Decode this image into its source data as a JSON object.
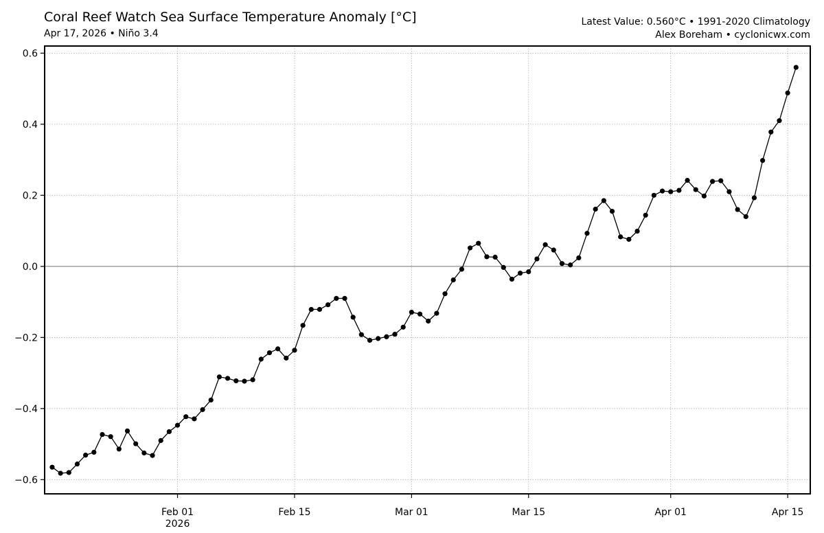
{
  "header": {
    "title": "Coral Reef Watch Sea Surface Temperature Anomaly [°C]",
    "subtitle": "Apr 17, 2026 • Niño 3.4",
    "latest_line": "Latest Value: 0.560°C • 1991-2020 Climatology",
    "credit_line": "Alex Boreham • cyclonicwx.com"
  },
  "colors": {
    "line": "#000000",
    "marker": "#000000",
    "grid": "#b0b0b0",
    "zero_line": "#808080",
    "frame": "#000000"
  },
  "chart_data": {
    "type": "line",
    "title": "Coral Reef Watch Sea Surface Temperature Anomaly [°C]",
    "xlabel": "",
    "ylabel": "",
    "start_date": "2026-01-17",
    "end_date": "2026-04-17",
    "xlim_days": [
      -0.9,
      90.7
    ],
    "ylim": [
      -0.64,
      0.62
    ],
    "y_ticks": [
      0.6,
      0.4,
      0.2,
      0.0,
      -0.2,
      -0.4,
      -0.6
    ],
    "y_tick_labels": [
      "0.6",
      "0.4",
      "0.2",
      "0.0",
      "−0.2",
      "−0.4",
      "−0.6"
    ],
    "x_ticks_days": [
      15,
      29,
      43,
      57,
      74,
      88
    ],
    "x_tick_labels": [
      "Feb 01",
      "Feb 15",
      "Mar 01",
      "Mar 15",
      "Apr 01",
      "Apr 15"
    ],
    "x_tick_year_label": "2026",
    "grid": true,
    "zero_line": true,
    "series": [
      {
        "name": "Niño 3.4 SST Anomaly",
        "values": [
          -0.565,
          -0.582,
          -0.58,
          -0.556,
          -0.531,
          -0.523,
          -0.473,
          -0.479,
          -0.514,
          -0.463,
          -0.499,
          -0.525,
          -0.532,
          -0.49,
          -0.465,
          -0.447,
          -0.423,
          -0.429,
          -0.403,
          -0.376,
          -0.311,
          -0.315,
          -0.322,
          -0.323,
          -0.319,
          -0.261,
          -0.243,
          -0.232,
          -0.258,
          -0.236,
          -0.166,
          -0.121,
          -0.121,
          -0.108,
          -0.09,
          -0.09,
          -0.143,
          -0.192,
          -0.208,
          -0.203,
          -0.198,
          -0.191,
          -0.171,
          -0.129,
          -0.134,
          -0.154,
          -0.132,
          -0.077,
          -0.038,
          -0.008,
          0.052,
          0.065,
          0.027,
          0.026,
          -0.003,
          -0.036,
          -0.019,
          -0.015,
          0.021,
          0.061,
          0.046,
          0.008,
          0.004,
          0.024,
          0.093,
          0.161,
          0.185,
          0.155,
          0.083,
          0.076,
          0.099,
          0.144,
          0.2,
          0.212,
          0.21,
          0.214,
          0.242,
          0.216,
          0.198,
          0.239,
          0.241,
          0.21,
          0.16,
          0.14,
          0.193,
          0.298,
          0.378,
          0.41,
          0.488,
          0.56
        ]
      }
    ]
  }
}
